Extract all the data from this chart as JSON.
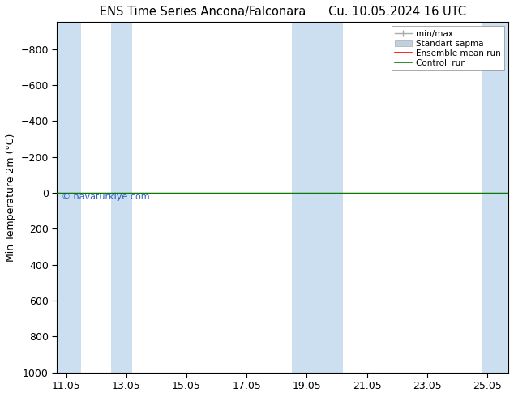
{
  "title_left": "ENS Time Series Ancona/Falconara",
  "title_right": "Cu. 10.05.2024 16 UTC",
  "ylabel": "Min Temperature 2m (°C)",
  "watermark": "© havaturkiye.com",
  "ylim_bottom": 1000,
  "ylim_top": -950,
  "yticks": [
    -800,
    -600,
    -400,
    -200,
    0,
    200,
    400,
    600,
    800,
    1000
  ],
  "x_dates": [
    "11.05",
    "13.05",
    "15.05",
    "17.05",
    "19.05",
    "21.05",
    "23.05",
    "25.05"
  ],
  "x_numeric": [
    0,
    2,
    4,
    6,
    8,
    10,
    12,
    14
  ],
  "xlim": [
    -0.3,
    14.7
  ],
  "shaded_bands": [
    {
      "x_start": -0.3,
      "x_end": 0.7
    },
    {
      "x_start": 1.3,
      "x_end": 2.3
    },
    {
      "x_start": 7.7,
      "x_end": 8.7
    },
    {
      "x_start": 8.3,
      "x_end": 9.3
    },
    {
      "x_start": 13.7,
      "x_end": 14.7
    }
  ],
  "line_y": 0,
  "min_max_color": "#aaaaaa",
  "std_dev_color": "#c0d0e0",
  "ensemble_mean_color": "#ff0000",
  "control_run_color": "#008000",
  "band_color": "#ccdff0",
  "background_color": "#ffffff",
  "title_fontsize": 10.5,
  "label_fontsize": 9,
  "tick_fontsize": 9
}
